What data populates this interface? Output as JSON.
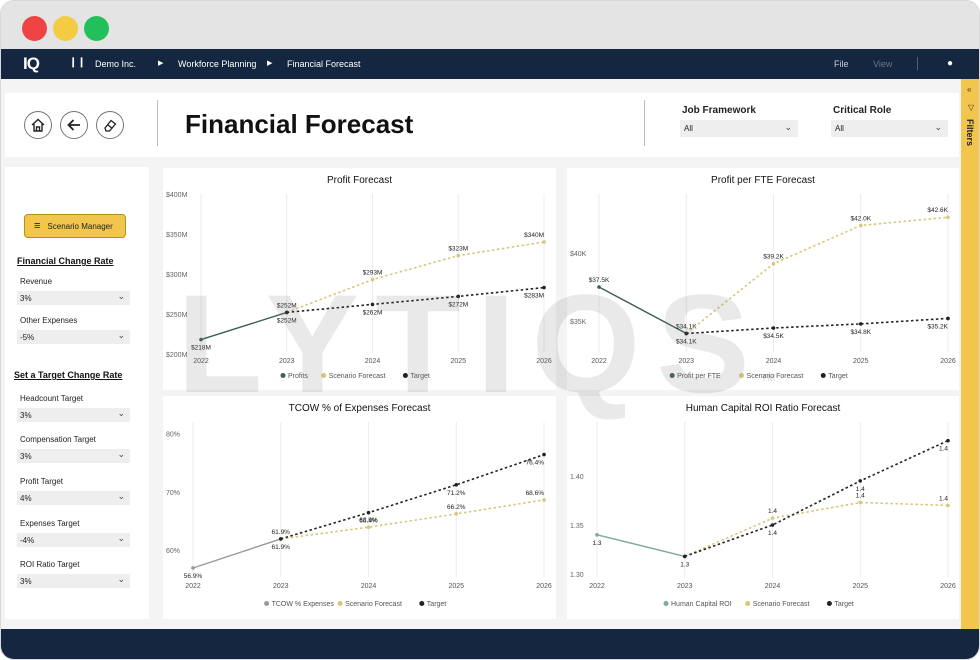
{
  "window": {
    "traffic_lights": [
      "#ee4444",
      "#f4cc44",
      "#22c05a"
    ]
  },
  "nav": {
    "logo": "IQ",
    "breadcrumb": [
      "Demo Inc.",
      "Workforce Planning",
      "Financial Forecast"
    ],
    "file": "File",
    "view": "View"
  },
  "header": {
    "title": "Financial Forecast",
    "job_framework": {
      "label": "Job Framework",
      "value": "All"
    },
    "critical_role": {
      "label": "Critical Role",
      "value": "All"
    }
  },
  "filters_pane": {
    "label": "Filters"
  },
  "left_panel": {
    "scenario_button": "Scenario Manager",
    "financial_change_rate": {
      "heading": "Financial Change Rate",
      "fields": [
        {
          "label": "Revenue",
          "value": "3%"
        },
        {
          "label": "Other Expenses",
          "value": "-5%"
        }
      ]
    },
    "target_change_rate": {
      "heading": "Set a Target Change Rate",
      "fields": [
        {
          "label": "Headcount Target",
          "value": "3%"
        },
        {
          "label": "Compensation Target",
          "value": "3%"
        },
        {
          "label": "Profit Target",
          "value": "4%"
        },
        {
          "label": "Expenses Target",
          "value": "-4%"
        },
        {
          "label": "ROI Ratio Target",
          "value": "3%"
        }
      ]
    }
  },
  "watermark": "LYTIQS",
  "watermark_tm": "TM",
  "colors": {
    "navy": "#142640",
    "accent": "#f2c64d",
    "scenario": "#d6c77a",
    "target": "#222222"
  },
  "chart_data": [
    {
      "type": "line",
      "title": "Profit Forecast",
      "categories": [
        "2022",
        "2023",
        "2024",
        "2025",
        "2026"
      ],
      "yticks": [
        "$200M",
        "$250M",
        "$300M",
        "$350M",
        "$400M"
      ],
      "ylim": [
        200,
        400
      ],
      "series": [
        {
          "name": "Profits",
          "color": "#3f5f52",
          "values": [
            218,
            252,
            null,
            null,
            null
          ],
          "labels": [
            "$218M",
            "$252M",
            "",
            "",
            ""
          ]
        },
        {
          "name": "Scenario Forecast",
          "color": "#d6c77a",
          "values": [
            null,
            252,
            293,
            323,
            340
          ],
          "labels": [
            "",
            "",
            "$293M",
            "$323M",
            "$340M"
          ]
        },
        {
          "name": "Target",
          "color": "#222222",
          "values": [
            null,
            252,
            262,
            272,
            283
          ],
          "labels": [
            "",
            "$252M",
            "$262M",
            "$272M",
            "$283M"
          ]
        }
      ]
    },
    {
      "type": "line",
      "title": "Profit per FTE Forecast",
      "categories": [
        "2022",
        "2023",
        "2024",
        "2025",
        "2026"
      ],
      "yticks": [
        "$35K",
        "$40K"
      ],
      "ylim": [
        32.6,
        44.3
      ],
      "series": [
        {
          "name": "Profit per FTE",
          "color": "#3f5f52",
          "values": [
            37.5,
            34.1,
            null,
            null,
            null
          ],
          "labels": [
            "$37.5K",
            "$34.1K",
            "",
            "",
            ""
          ]
        },
        {
          "name": "Scenario Forecast",
          "color": "#d6c77a",
          "values": [
            null,
            34.1,
            39.2,
            42.0,
            42.6
          ],
          "labels": [
            "",
            "",
            "$39.2K",
            "$42.0K",
            "$42.6K"
          ]
        },
        {
          "name": "Target",
          "color": "#222222",
          "values": [
            null,
            34.1,
            34.5,
            34.8,
            35.2
          ],
          "labels": [
            "",
            "$34.1K",
            "$34.5K",
            "$34.8K",
            "$35.2K"
          ]
        }
      ]
    },
    {
      "type": "line",
      "title": "TCOW % of Expenses Forecast",
      "categories": [
        "2022",
        "2023",
        "2024",
        "2025",
        "2026"
      ],
      "yticks": [
        "60%",
        "70%",
        "80%"
      ],
      "ylim": [
        55,
        82
      ],
      "series": [
        {
          "name": "TCOW % Expenses",
          "color": "#9a9a9a",
          "values": [
            56.9,
            61.9,
            null,
            null,
            null
          ],
          "labels": [
            "56.9%",
            "61.9%",
            "",
            "",
            ""
          ]
        },
        {
          "name": "Scenario Forecast",
          "color": "#d6c77a",
          "values": [
            null,
            61.9,
            63.9,
            66.2,
            68.6
          ],
          "labels": [
            "",
            "",
            "63.9%",
            "66.2%",
            "68.6%"
          ]
        },
        {
          "name": "Target",
          "color": "#222222",
          "values": [
            null,
            61.9,
            66.4,
            71.2,
            76.4
          ],
          "labels": [
            "",
            "61.9%",
            "66.4%",
            "71.2%",
            "76.4%"
          ]
        }
      ]
    },
    {
      "type": "line",
      "title": "Human Capital ROI Ratio Forecast",
      "categories": [
        "2022",
        "2023",
        "2024",
        "2025",
        "2026"
      ],
      "yticks": [
        "1.30",
        "1.35",
        "1.40"
      ],
      "ylim": [
        1.295,
        1.455
      ],
      "series": [
        {
          "name": "Human Capital ROI",
          "color": "#7ea99c",
          "values": [
            1.34,
            1.318,
            null,
            null,
            null
          ],
          "labels": [
            "1.3",
            "1.3",
            "",
            "",
            ""
          ]
        },
        {
          "name": "Scenario Forecast",
          "color": "#d6c77a",
          "values": [
            null,
            1.318,
            1.357,
            1.373,
            1.37
          ],
          "labels": [
            "",
            "",
            "1.4",
            "1.4",
            "1.4"
          ]
        },
        {
          "name": "Target",
          "color": "#222222",
          "values": [
            null,
            1.318,
            1.35,
            1.395,
            1.436
          ],
          "labels": [
            "",
            "",
            "1.4",
            "1.4",
            "1.4"
          ]
        }
      ]
    }
  ]
}
